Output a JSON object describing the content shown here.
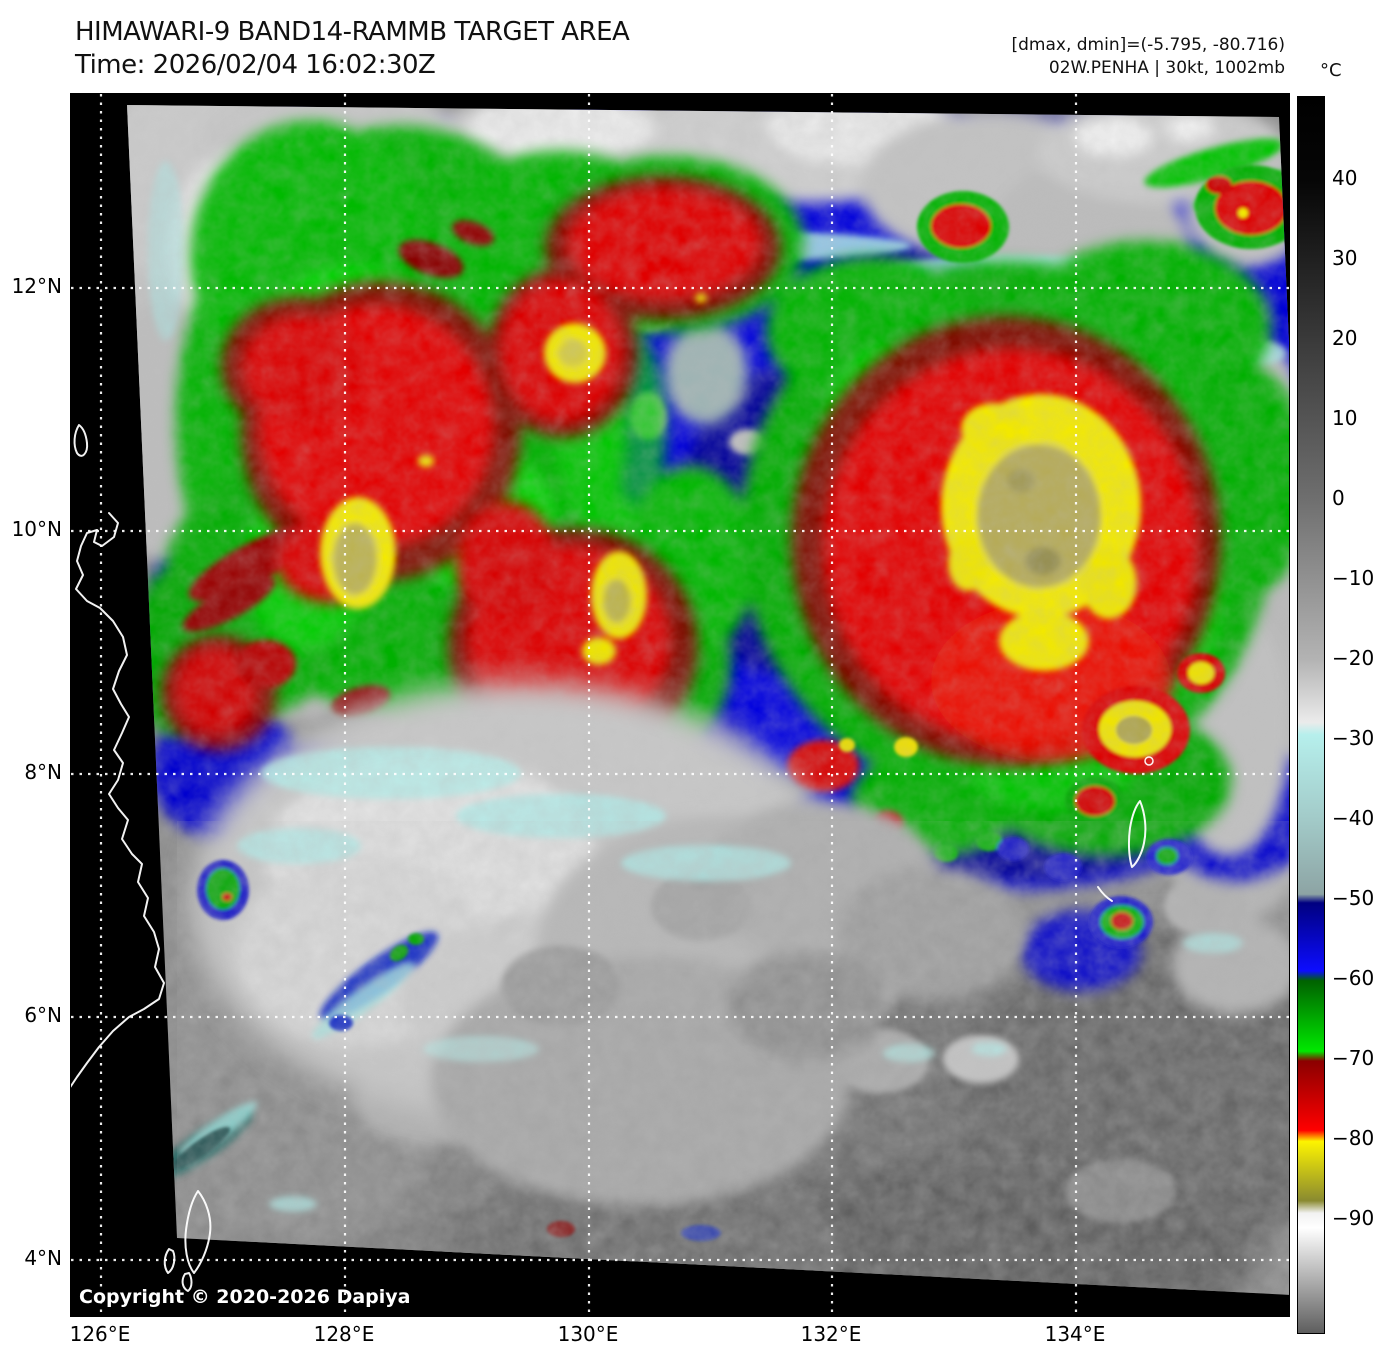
{
  "header": {
    "title": "HIMAWARI-9 BAND14-RAMMB TARGET AREA",
    "time": "Time: 2026/02/04 16:02:30Z"
  },
  "annotations": {
    "range_line": "[dmax, dmin]=(-5.795, -80.716)",
    "storm_line": "02W.PENHA | 30kt, 1002mb"
  },
  "colorbar": {
    "unit": "°C",
    "ticks": [
      "40",
      "30",
      "20",
      "10",
      "0",
      "−10",
      "−20",
      "−30",
      "−40",
      "−50",
      "−60",
      "−70",
      "−80",
      "−90"
    ]
  },
  "axes": {
    "x_ticks": [
      "126°E",
      "128°E",
      "130°E",
      "132°E",
      "134°E"
    ],
    "y_ticks": [
      "12°N",
      "10°N",
      "8°N",
      "6°N",
      "4°N"
    ]
  },
  "map": {
    "copyright": "Copyright © 2020-2026 Dapiya",
    "satellite": "Himawari-9",
    "band": "BAND14",
    "storm_id": "02W",
    "storm_name": "PENHA",
    "intensity_kt": "30kt",
    "pressure_mb": "1002mb"
  },
  "colors": {
    "page_bg": "#ffffff",
    "plot_bg": "#000000",
    "grid": "#ffffff",
    "coastline": "#ffffff",
    "cold_blue": "#0d0dff",
    "cold_green": "#00e800",
    "cold_red": "#ff0000",
    "cold_yellow": "#fdf400",
    "cirrus_cyan": "#b6efec"
  }
}
